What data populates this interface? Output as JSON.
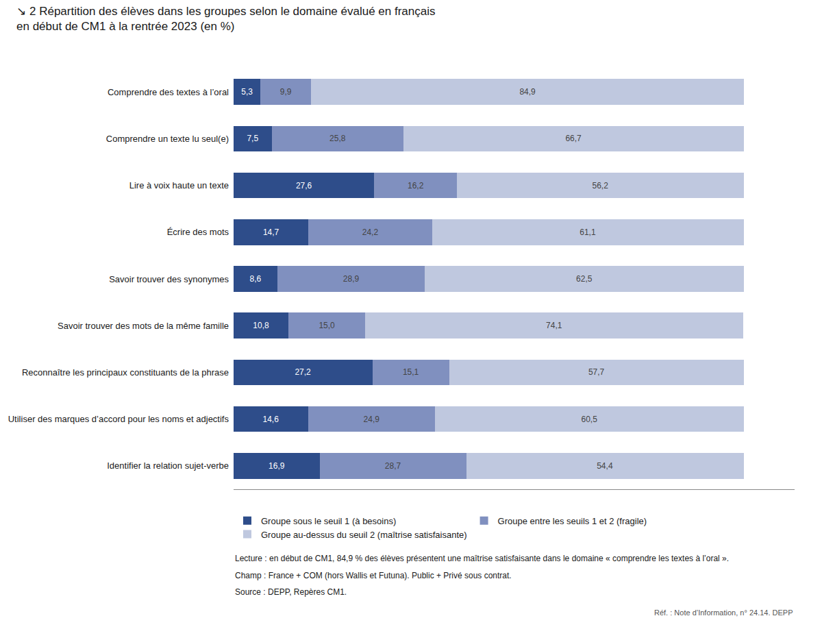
{
  "chart_data": {
    "type": "bar",
    "orientation": "horizontal",
    "stacked": true,
    "data_labels": true,
    "grid": false,
    "legend": "bottom",
    "tick_labels": "y",
    "title": "↘ 2 Répartition des élèves dans les groupes selon le domaine évalué en français",
    "subtitle": "en début de CM1 à la rentrée 2023 (en %)",
    "categories": [
      "Comprendre des textes à l’oral",
      "Comprendre un texte lu seul(e)",
      "Lire à voix haute un texte",
      "Écrire des mots",
      "Savoir trouver des synonymes",
      "Savoir trouver des mots de la même famille",
      "Reconnaître les principaux constituants de la phrase",
      "Utiliser des marques d’accord pour les noms et adjectifs",
      "Identifier la relation sujet-verbe"
    ],
    "series": [
      {
        "name": "Groupe sous le seuil 1 (à besoins)",
        "color": "#2e4d8a",
        "values": [
          5.3,
          7.5,
          27.6,
          14.7,
          8.6,
          10.8,
          27.2,
          14.6,
          16.9
        ],
        "value_labels": [
          "5,3",
          "7,5",
          "27,6",
          "14,7",
          "8,6",
          "10,8",
          "27,2",
          "14,6",
          "16,9"
        ]
      },
      {
        "name": "Groupe entre les seuils 1 et 2 (fragile)",
        "color": "#8090bf",
        "values": [
          9.9,
          25.8,
          16.2,
          24.2,
          28.9,
          15.0,
          15.1,
          24.9,
          28.7
        ],
        "value_labels": [
          "9,9",
          "25,8",
          "16,2",
          "24,2",
          "28,9",
          "15,0",
          "15,1",
          "24,9",
          "28,7"
        ]
      },
      {
        "name": "Groupe au-dessus du seuil 2 (maîtrise satisfaisante)",
        "color": "#bfc8df",
        "values": [
          84.9,
          66.7,
          56.2,
          61.1,
          62.5,
          74.1,
          57.7,
          60.5,
          54.4
        ],
        "value_labels": [
          "84,9",
          "66,7",
          "56,2",
          "61,1",
          "62,5",
          "74,1",
          "57,7",
          "60,5",
          "54,4"
        ]
      }
    ],
    "xlim": [
      0,
      110
    ],
    "xticks": [
      0,
      10,
      20,
      30,
      40,
      50,
      60,
      70,
      80,
      90,
      100,
      110
    ],
    "annotations": [
      "Lecture : en début de CM1, 84,9 % des élèves présentent une maîtrise satisfaisante dans le domaine « comprendre les textes à l’oral ».",
      "Champ : France + COM (hors Wallis et Futuna). Public + Privé sous contrat.",
      "Source : DEPP, Repères CM1.",
      "Réf. : Note d’Information, n° 24.14. DEPP"
    ]
  }
}
